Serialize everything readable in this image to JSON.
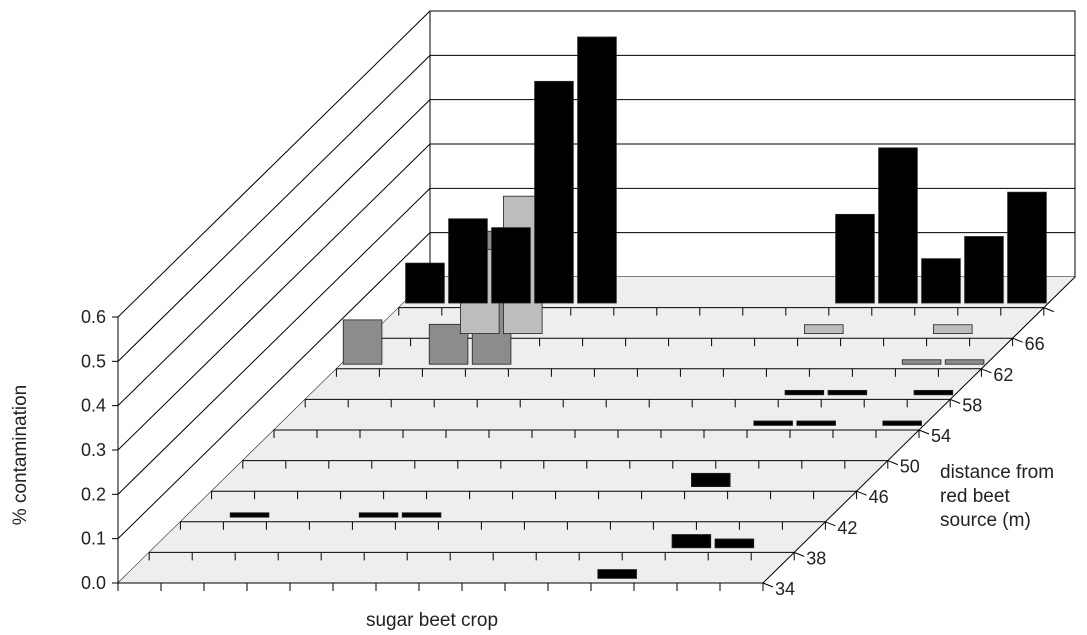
{
  "chart_data": {
    "type": "bar",
    "title": "",
    "zlabel": "% contamination",
    "xlabel": "sugar beet crop",
    "ylabel": "distance from red beet source (m)",
    "zlim": [
      0,
      0.6
    ],
    "z_ticks": [
      "0.0",
      "0.1",
      "0.2",
      "0.3",
      "0.4",
      "0.5",
      "0.6"
    ],
    "grid": true,
    "columns": 15,
    "rows": [
      {
        "distance": "34",
        "values": [
          0.09,
          0.19,
          0.17,
          0.5,
          0.6,
          0,
          0,
          0,
          0,
          0,
          0.2,
          0.35,
          0.1,
          0.15,
          0.25
        ]
      },
      {
        "distance": "38",
        "values": [
          0,
          0,
          0.19,
          0.31,
          0,
          0,
          0,
          0,
          0,
          0,
          0.02,
          0,
          0,
          0.02,
          0
        ]
      },
      {
        "distance": "42",
        "values": [
          0.1,
          0,
          0.09,
          0.3,
          0,
          0,
          0,
          0,
          0,
          0,
          0,
          0,
          0,
          0.01,
          0.01
        ]
      },
      {
        "distance": "46",
        "values": [
          0,
          0,
          0,
          0,
          0,
          0,
          0,
          0,
          0,
          0,
          0,
          0.01,
          0.01,
          0,
          0.01
        ]
      },
      {
        "distance": "50",
        "values": [
          0,
          0,
          0,
          0,
          0,
          0,
          0,
          0,
          0,
          0,
          0,
          0.01,
          0.01,
          0,
          0.01
        ]
      },
      {
        "distance": "54",
        "values": [
          0,
          0,
          0,
          0,
          0,
          0,
          0,
          0,
          0,
          0,
          0,
          0,
          0,
          0,
          0
        ]
      },
      {
        "distance": "58",
        "values": [
          0,
          0,
          0,
          0,
          0,
          0,
          0,
          0,
          0,
          0,
          0,
          0.03,
          0,
          0,
          0
        ]
      },
      {
        "distance": "62",
        "values": [
          0,
          0.01,
          0,
          0,
          0.01,
          0.01,
          0,
          0,
          0,
          0,
          0,
          0,
          0,
          0,
          0
        ]
      },
      {
        "distance": "66",
        "values": [
          0,
          0,
          0,
          0,
          0,
          0,
          0,
          0,
          0,
          0,
          0,
          0,
          0.03,
          0.02,
          0
        ]
      },
      {
        "distance": "",
        "values": [
          0,
          0,
          0,
          0,
          0,
          0,
          0,
          0,
          0,
          0,
          0,
          0.02,
          0,
          0,
          0
        ]
      }
    ],
    "row_colors": [
      "#000000",
      "#bdbdbd",
      "#8c8c8c",
      "#000000",
      "#000000",
      "#000000",
      "#000000",
      "#000000",
      "#000000",
      "#000000"
    ]
  }
}
